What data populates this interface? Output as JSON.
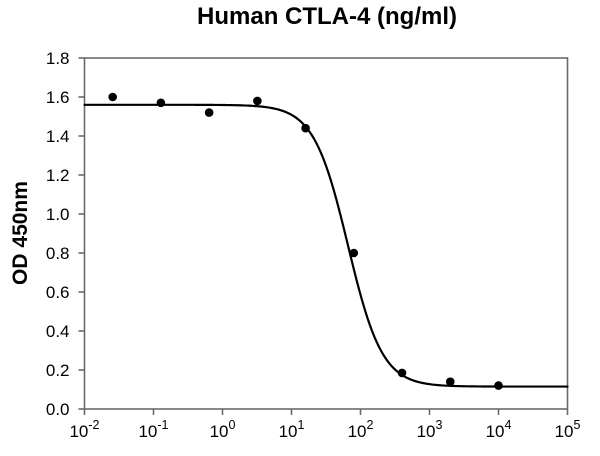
{
  "chart_data": {
    "type": "scatter",
    "title": "Human CTLA-4 (ng/ml)",
    "xlabel": "",
    "ylabel": "OD 450nm",
    "x_scale": "log10",
    "xlim_log": [
      -2,
      5
    ],
    "ylim": [
      0,
      1.8
    ],
    "grid": false,
    "legend": "none",
    "xticks": {
      "base": "10",
      "exponents": [
        "-2",
        "-1",
        "0",
        "1",
        "2",
        "3",
        "4",
        "5"
      ]
    },
    "yticks": {
      "values": [
        0,
        0.2,
        0.4,
        0.6,
        0.8,
        1.0,
        1.2,
        1.4,
        1.6,
        1.8
      ],
      "labels": [
        "0.0",
        "0.2",
        "0.4",
        "0.6",
        "0.8",
        "1.0",
        "1.2",
        "1.4",
        "1.6",
        "1.8"
      ]
    },
    "series": [
      {
        "name": "Human CTLA-4",
        "marker": "filled-circle",
        "x": [
          0.0256,
          0.128,
          0.64,
          3.2,
          16,
          80,
          400,
          2000,
          10000
        ],
        "y": [
          1.6,
          1.57,
          1.52,
          1.58,
          1.44,
          0.8,
          0.185,
          0.14,
          0.12
        ]
      }
    ],
    "fit_curve": {
      "model": "4PL",
      "top": 1.56,
      "bottom": 0.115,
      "ec50_ng_ml": 66,
      "hill": 1.75
    },
    "colors": {
      "curve": "#000000",
      "marker": "#000000",
      "axis": "#6a6a6a",
      "text": "#000000",
      "background": "#ffffff"
    }
  }
}
